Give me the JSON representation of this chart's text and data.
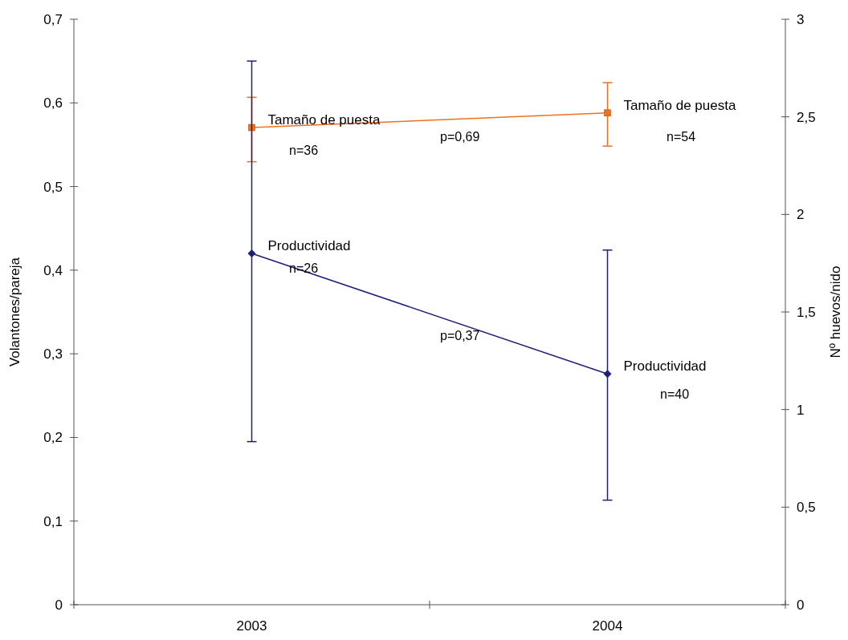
{
  "chart_data": {
    "type": "line",
    "categories": [
      "2003",
      "2004"
    ],
    "ylabel": "Volantones/pareja",
    "y2label": "Nº huevos/nido",
    "ylim": [
      0,
      0.7
    ],
    "yticks": [
      0,
      {
        "value": 0.1,
        "label": "0,1"
      },
      {
        "value": 0.2,
        "label": "0,2"
      },
      {
        "value": 0.3,
        "label": "0,3"
      },
      {
        "value": 0.4,
        "label": "0,4"
      },
      {
        "value": 0.5,
        "label": "0,5"
      },
      {
        "value": 0.6,
        "label": "0,6"
      },
      {
        "value": 0.7,
        "label": "0,7"
      }
    ],
    "y2lim": [
      0,
      3
    ],
    "y2ticks": [
      0,
      {
        "value": 0.5,
        "label": "0,5"
      },
      1,
      {
        "value": 1.5,
        "label": "1,5"
      },
      2,
      {
        "value": 2.5,
        "label": "2,5"
      },
      3
    ],
    "series": [
      {
        "name": "Tamaño de puesta",
        "color": "#f07020",
        "axis": "y2",
        "marker": "square",
        "values": [
          2.445,
          2.52
        ],
        "errors": [
          [
            2.27,
            2.6
          ],
          [
            2.35,
            2.675
          ]
        ]
      },
      {
        "name": "Productividad",
        "color": "#1f1f7a",
        "axis": "y",
        "marker": "diamond",
        "values": [
          0.42,
          0.276
        ],
        "errors": [
          [
            0.195,
            0.65
          ],
          [
            0.125,
            0.424
          ]
        ]
      }
    ],
    "annotations": [
      "n=36",
      "p=0,69",
      "n=54",
      "n=26",
      "p=0,37",
      "n=40"
    ]
  }
}
